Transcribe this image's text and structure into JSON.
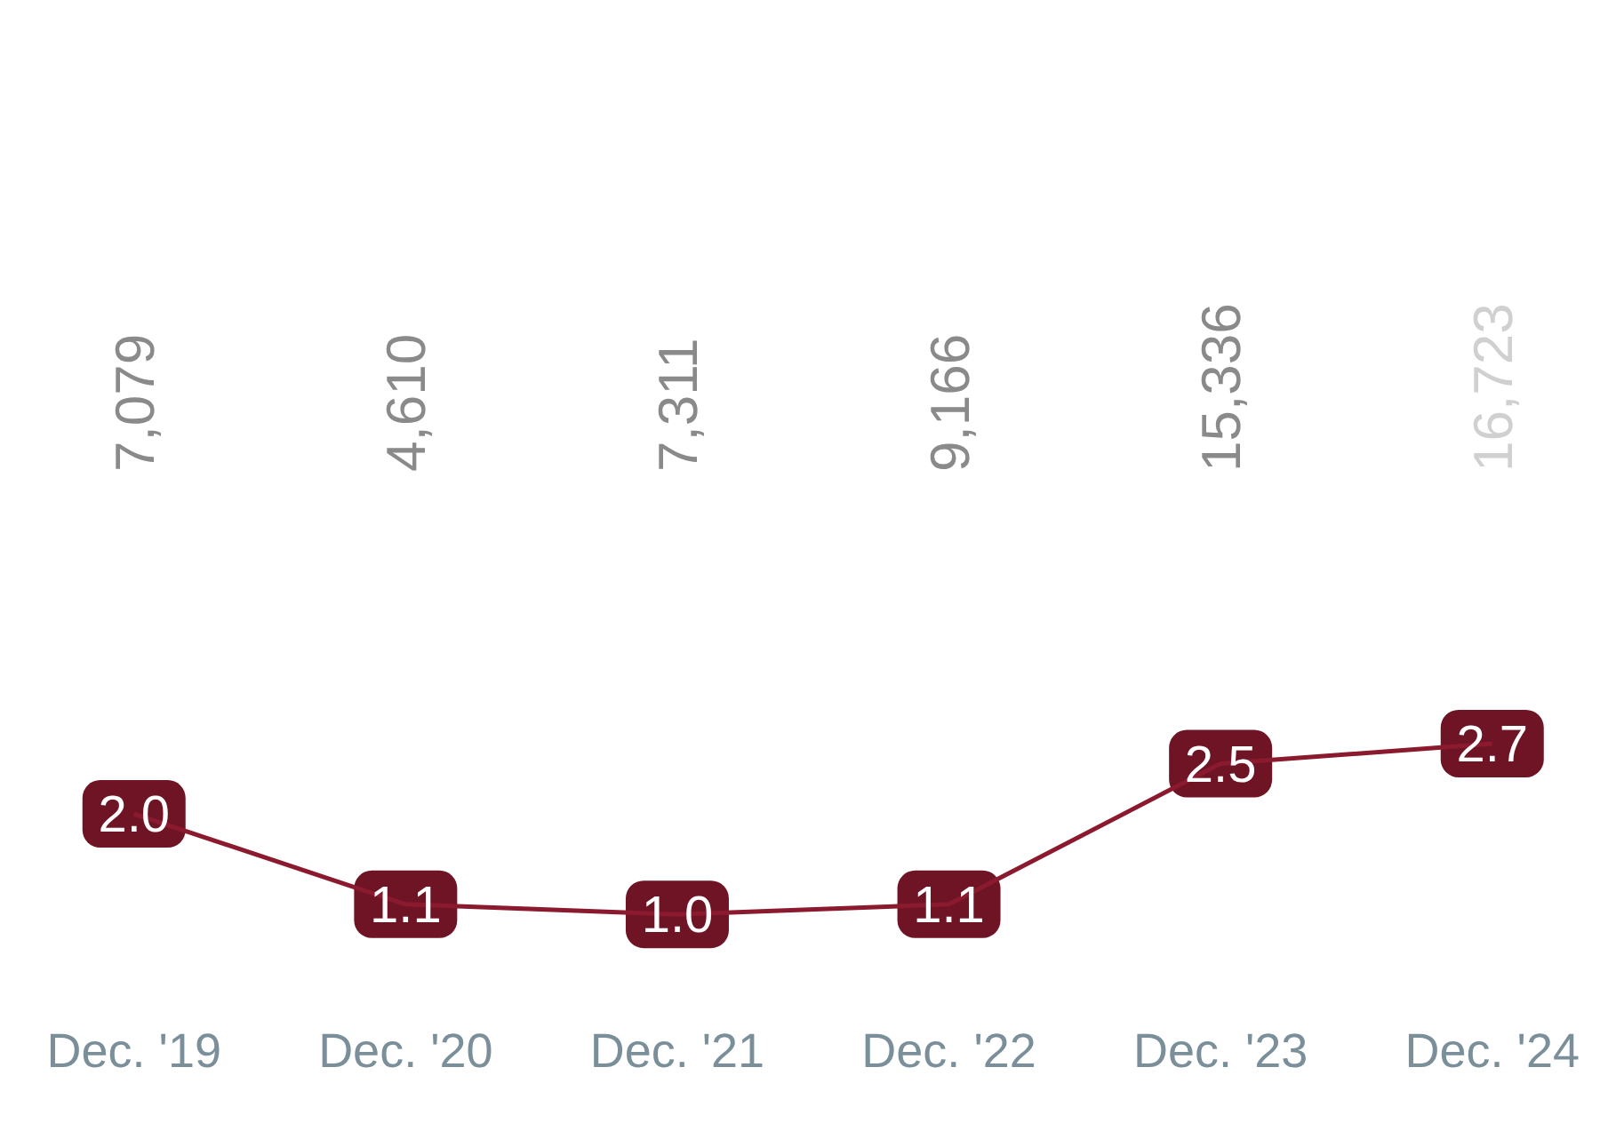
{
  "chart_data": {
    "type": "line",
    "categories": [
      "Dec. '19",
      "Dec. '20",
      "Dec. '21",
      "Dec. '22",
      "Dec. '23",
      "Dec. '24"
    ],
    "series": [
      {
        "color": "#8b1a2e",
        "values": [
          2.0,
          1.1,
          1.0,
          1.1,
          2.5,
          2.7
        ],
        "value_labels": [
          "2.0",
          "1.1",
          "1.0",
          "1.1",
          "2.5",
          "2.7"
        ]
      }
    ],
    "tick_labels": "x",
    "line_style": "solid",
    "annotations": [
      "7,079",
      "4,610",
      "7,311",
      "9,166",
      "15,336",
      "16,723"
    ]
  }
}
